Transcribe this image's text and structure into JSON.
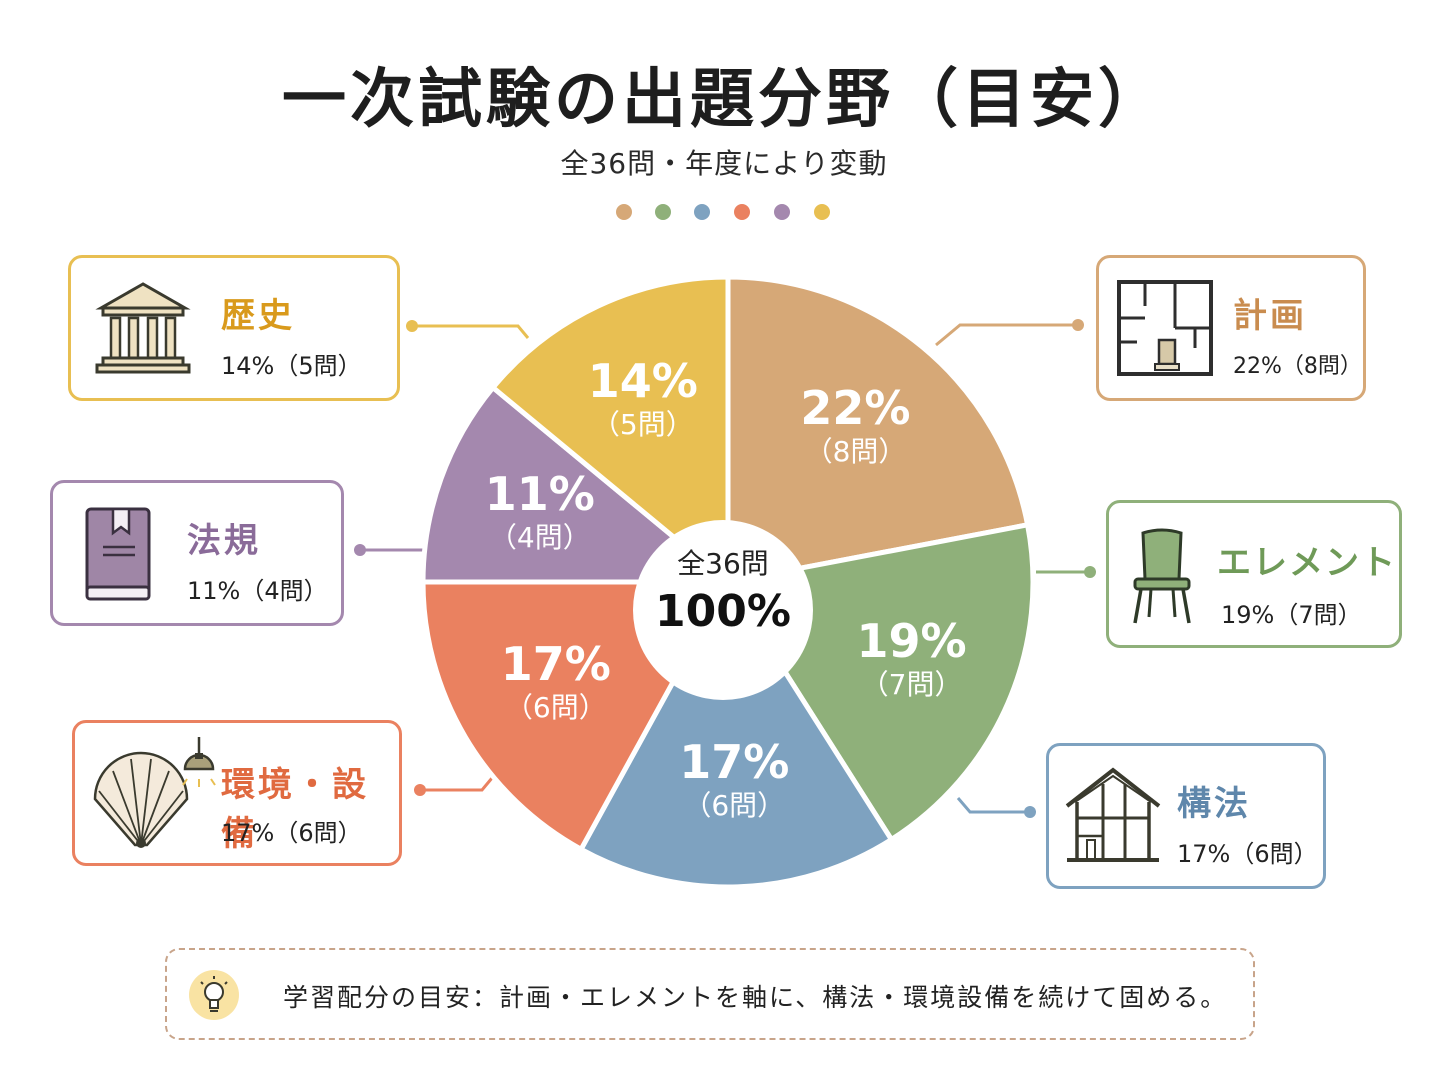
{
  "title": "一次試験の出題分野（目安）",
  "subtitle": "全36問・年度により変動",
  "center": {
    "line1": "全36問",
    "line2": "100%"
  },
  "legend_dots": [
    "#d6a877",
    "#8fb07a",
    "#7ea2c0",
    "#ea8160",
    "#a488ae",
    "#e8bf52"
  ],
  "chart_data": {
    "type": "pie",
    "title": "一次試験の出題分野（目安）",
    "subtitle": "全36問・年度により変動",
    "total_label": "全36問",
    "total_percent": "100%",
    "categories": [
      "計画",
      "エレメント",
      "構法",
      "環境・設備",
      "法規",
      "歴史"
    ],
    "values": [
      22,
      19,
      17,
      17,
      11,
      14
    ],
    "counts": [
      8,
      7,
      6,
      6,
      4,
      5
    ],
    "colors": [
      "#d6a877",
      "#8fb07a",
      "#7ea2c0",
      "#ea8160",
      "#a488ae",
      "#e8bf52"
    ],
    "slice_labels": [
      {
        "pct": "22%",
        "count": "（8問）"
      },
      {
        "pct": "19%",
        "count": "（7問）"
      },
      {
        "pct": "17%",
        "count": "（6問）"
      },
      {
        "pct": "17%",
        "count": "（6問）"
      },
      {
        "pct": "11%",
        "count": "（4問）"
      },
      {
        "pct": "14%",
        "count": "（5問）"
      }
    ]
  },
  "cards": {
    "rekishi": {
      "name": "歴史",
      "info": "14%（5問）",
      "color": "#e8bf52",
      "name_color": "#d99a1c",
      "icon": "temple-icon"
    },
    "hoki": {
      "name": "法規",
      "info": "11%（4問）",
      "color": "#a488ae",
      "name_color": "#8a6b99",
      "icon": "book-icon"
    },
    "kankyo": {
      "name": "環境・設備",
      "info": "17%（6問）",
      "color": "#ea8160",
      "name_color": "#e06a40",
      "icon": "fan-lamp-icon"
    },
    "keikaku": {
      "name": "計画",
      "info": "22%（8問）",
      "color": "#d6a877",
      "name_color": "#c98c4f",
      "icon": "floor-plan-icon"
    },
    "element": {
      "name": "エレメント",
      "info": "19%（7問）",
      "color": "#8fb07a",
      "name_color": "#6f9a58",
      "icon": "chair-icon"
    },
    "koho": {
      "name": "構法",
      "info": "17%（6問）",
      "color": "#7ea2c0",
      "name_color": "#5f87ab",
      "icon": "house-frame-icon"
    }
  },
  "footer": {
    "icon": "lightbulb-icon",
    "text": "学習配分の目安：計画・エレメントを軸に、構法・環境設備を続けて固める。"
  }
}
